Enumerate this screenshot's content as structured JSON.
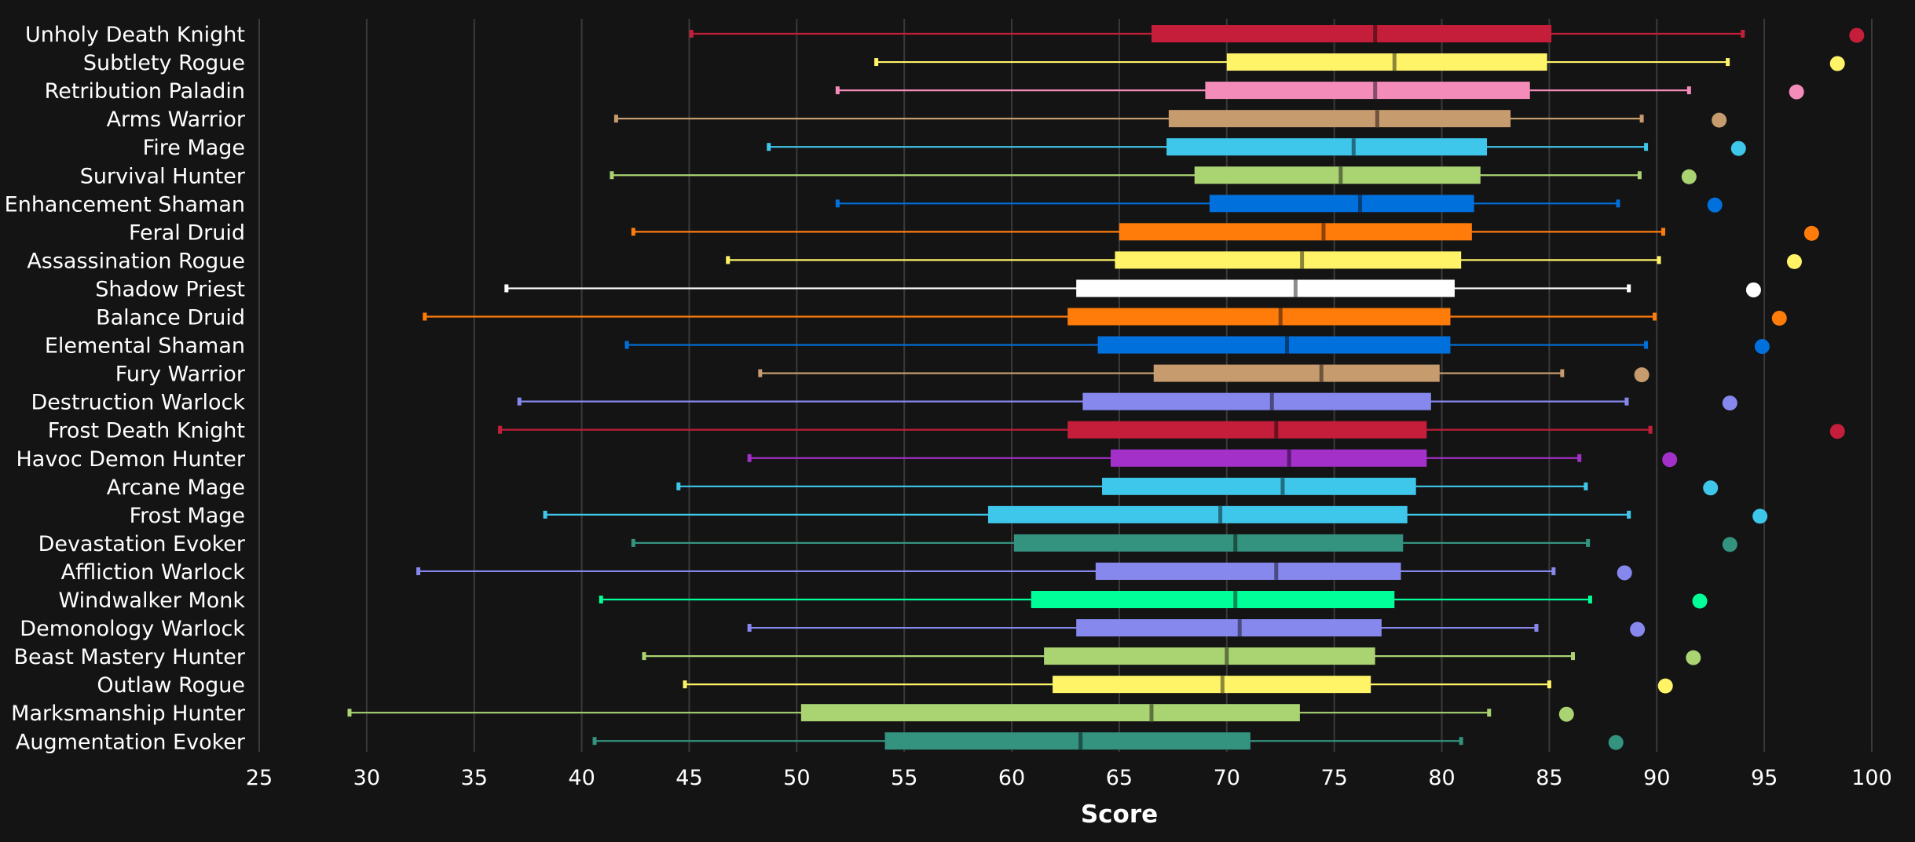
{
  "chart_data": {
    "type": "box",
    "title": "",
    "xlabel": "Score",
    "ylabel": "",
    "xlim": [
      25,
      100
    ],
    "xticks": [
      25,
      30,
      35,
      40,
      45,
      50,
      55,
      60,
      65,
      70,
      75,
      80,
      85,
      90,
      95,
      100
    ],
    "grid": true,
    "series": [
      {
        "name": "Unholy Death Knight",
        "color": "#C41E3A",
        "min": 45.1,
        "q1": 66.5,
        "median": 76.9,
        "q3": 85.1,
        "max": 94.0,
        "max_point": 99.3
      },
      {
        "name": "Subtlety Rogue",
        "color": "#FFF468",
        "min": 53.7,
        "q1": 70.0,
        "median": 77.8,
        "q3": 84.9,
        "max": 93.3,
        "max_point": 98.4
      },
      {
        "name": "Retribution Paladin",
        "color": "#F48CBA",
        "min": 51.9,
        "q1": 69.0,
        "median": 76.9,
        "q3": 84.1,
        "max": 91.5,
        "max_point": 96.5
      },
      {
        "name": "Arms Warrior",
        "color": "#C69B6D",
        "min": 41.6,
        "q1": 67.3,
        "median": 77.0,
        "q3": 83.2,
        "max": 89.3,
        "max_point": 92.9
      },
      {
        "name": "Fire Mage",
        "color": "#3FC7EB",
        "min": 48.7,
        "q1": 67.2,
        "median": 75.9,
        "q3": 82.1,
        "max": 89.5,
        "max_point": 93.8
      },
      {
        "name": "Survival Hunter",
        "color": "#AAD372",
        "min": 41.4,
        "q1": 68.5,
        "median": 75.3,
        "q3": 81.8,
        "max": 89.2,
        "max_point": 91.5
      },
      {
        "name": "Enhancement Shaman",
        "color": "#0070DD",
        "min": 51.9,
        "q1": 69.2,
        "median": 76.2,
        "q3": 81.5,
        "max": 88.2,
        "max_point": 92.7
      },
      {
        "name": "Feral Druid",
        "color": "#FF7C0A",
        "min": 42.4,
        "q1": 65.0,
        "median": 74.5,
        "q3": 81.4,
        "max": 90.3,
        "max_point": 97.2
      },
      {
        "name": "Assassination Rogue",
        "color": "#FFF468",
        "min": 46.8,
        "q1": 64.8,
        "median": 73.5,
        "q3": 80.9,
        "max": 90.1,
        "max_point": 96.4
      },
      {
        "name": "Shadow Priest",
        "color": "#FFFFFF",
        "min": 36.5,
        "q1": 63.0,
        "median": 73.2,
        "q3": 80.6,
        "max": 88.7,
        "max_point": 94.5
      },
      {
        "name": "Balance Druid",
        "color": "#FF7C0A",
        "min": 32.7,
        "q1": 62.6,
        "median": 72.5,
        "q3": 80.4,
        "max": 89.9,
        "max_point": 95.7
      },
      {
        "name": "Elemental Shaman",
        "color": "#0070DD",
        "min": 42.1,
        "q1": 64.0,
        "median": 72.8,
        "q3": 80.4,
        "max": 89.5,
        "max_point": 94.9
      },
      {
        "name": "Fury Warrior",
        "color": "#C69B6D",
        "min": 48.3,
        "q1": 66.6,
        "median": 74.4,
        "q3": 79.9,
        "max": 85.6,
        "max_point": 89.3
      },
      {
        "name": "Destruction Warlock",
        "color": "#8788EE",
        "min": 37.1,
        "q1": 63.3,
        "median": 72.1,
        "q3": 79.5,
        "max": 88.6,
        "max_point": 93.4
      },
      {
        "name": "Frost Death Knight",
        "color": "#C41E3A",
        "min": 36.2,
        "q1": 62.6,
        "median": 72.3,
        "q3": 79.3,
        "max": 89.7,
        "max_point": 98.4
      },
      {
        "name": "Havoc Demon Hunter",
        "color": "#A330C9",
        "min": 47.8,
        "q1": 64.6,
        "median": 72.9,
        "q3": 79.3,
        "max": 86.4,
        "max_point": 90.6
      },
      {
        "name": "Arcane Mage",
        "color": "#3FC7EB",
        "min": 44.5,
        "q1": 64.2,
        "median": 72.6,
        "q3": 78.8,
        "max": 86.7,
        "max_point": 92.5
      },
      {
        "name": "Frost Mage",
        "color": "#3FC7EB",
        "min": 38.3,
        "q1": 58.9,
        "median": 69.7,
        "q3": 78.4,
        "max": 88.7,
        "max_point": 94.8
      },
      {
        "name": "Devastation Evoker",
        "color": "#33937F",
        "min": 42.4,
        "q1": 60.1,
        "median": 70.4,
        "q3": 78.2,
        "max": 86.8,
        "max_point": 93.4
      },
      {
        "name": "Affliction Warlock",
        "color": "#8788EE",
        "min": 32.4,
        "q1": 63.9,
        "median": 72.3,
        "q3": 78.1,
        "max": 85.2,
        "max_point": 88.5
      },
      {
        "name": "Windwalker Monk",
        "color": "#00FF98",
        "min": 40.9,
        "q1": 60.9,
        "median": 70.4,
        "q3": 77.8,
        "max": 86.9,
        "max_point": 92.0
      },
      {
        "name": "Demonology Warlock",
        "color": "#8788EE",
        "min": 47.8,
        "q1": 63.0,
        "median": 70.6,
        "q3": 77.2,
        "max": 84.4,
        "max_point": 89.1
      },
      {
        "name": "Beast Mastery Hunter",
        "color": "#AAD372",
        "min": 42.9,
        "q1": 61.5,
        "median": 70.0,
        "q3": 76.9,
        "max": 86.1,
        "max_point": 91.7
      },
      {
        "name": "Outlaw Rogue",
        "color": "#FFF468",
        "min": 44.8,
        "q1": 61.9,
        "median": 69.8,
        "q3": 76.7,
        "max": 85.0,
        "max_point": 90.4
      },
      {
        "name": "Marksmanship Hunter",
        "color": "#AAD372",
        "min": 29.2,
        "q1": 50.2,
        "median": 66.5,
        "q3": 73.4,
        "max": 82.2,
        "max_point": 85.8
      },
      {
        "name": "Augmentation Evoker",
        "color": "#33937F",
        "min": 40.6,
        "q1": 54.1,
        "median": 63.2,
        "q3": 71.1,
        "max": 80.9,
        "max_point": 88.1
      }
    ]
  }
}
